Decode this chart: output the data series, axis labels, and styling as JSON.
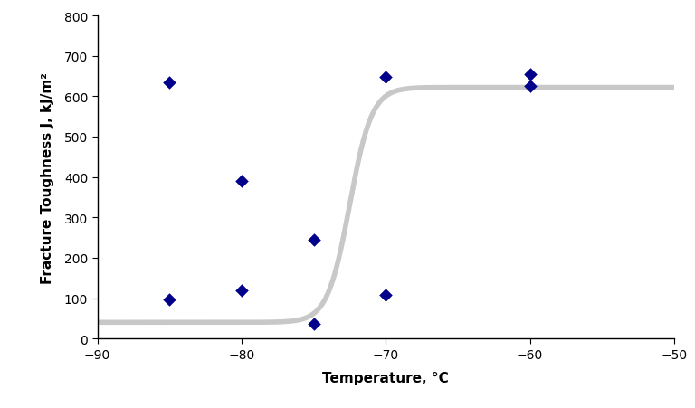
{
  "scatter_x": [
    -85,
    -85,
    -80,
    -80,
    -75,
    -75,
    -70,
    -70,
    -60,
    -60
  ],
  "scatter_y": [
    635,
    97,
    390,
    120,
    37,
    245,
    648,
    108,
    655,
    625
  ],
  "scatter_color": "#00008B",
  "scatter_marker": "D",
  "scatter_size": 55,
  "curve_x_start": -90,
  "curve_x_end": -50,
  "curve_midpoint": -72.5,
  "curve_lower": 40,
  "curve_upper": 622,
  "curve_steepness": 6.5,
  "curve_color": "#c8c8c8",
  "curve_linewidth": 4.0,
  "xlabel": "Temperature, °C",
  "ylabel": "Fracture Toughness J, kJ/m²",
  "xlim": [
    -90,
    -50
  ],
  "ylim": [
    0,
    800
  ],
  "xticks": [
    -90,
    -80,
    -70,
    -60,
    -50
  ],
  "yticks": [
    0,
    100,
    200,
    300,
    400,
    500,
    600,
    700,
    800
  ],
  "xlabel_fontsize": 11,
  "ylabel_fontsize": 11,
  "tick_fontsize": 10,
  "background_color": "#ffffff",
  "axes_linewidth": 1.0
}
